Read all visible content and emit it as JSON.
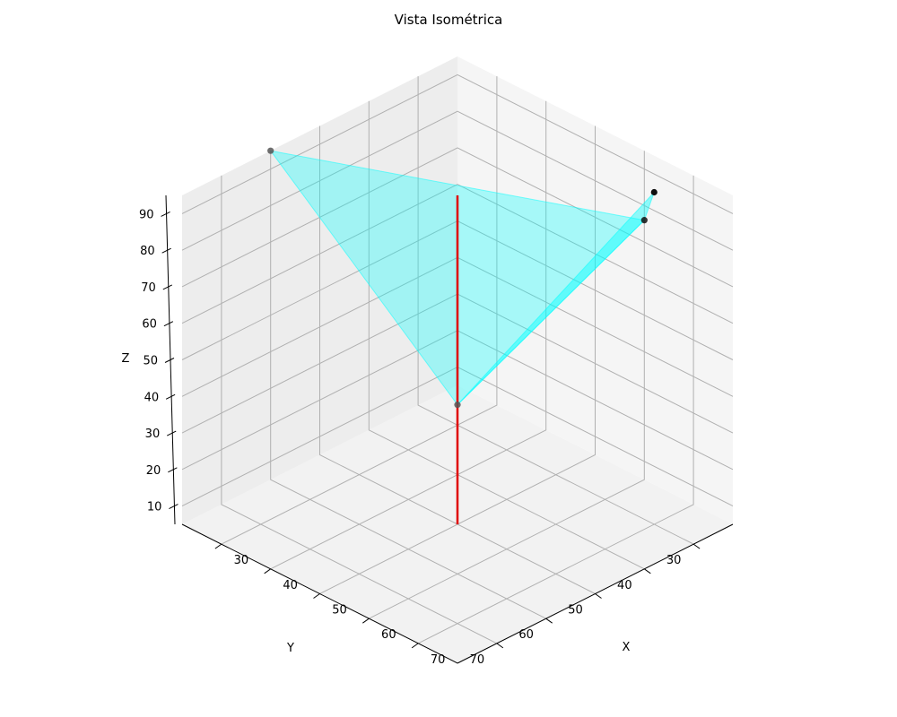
{
  "chart_data": {
    "type": "3d-scatter-surface",
    "title": "Vista Isométrica",
    "xlabel": "X",
    "ylabel": "Y",
    "zlabel": "Z",
    "xlim": [
      22,
      78
    ],
    "ylim": [
      22,
      78
    ],
    "zlim": [
      5,
      95
    ],
    "x_ticks": [
      30,
      40,
      50,
      60,
      70
    ],
    "y_ticks": [
      30,
      40,
      50,
      60,
      70
    ],
    "z_ticks": [
      10,
      20,
      30,
      40,
      50,
      60,
      70,
      80,
      90
    ],
    "grid": true,
    "points": [
      {
        "x": 22,
        "y": 60,
        "z": 95
      },
      {
        "x": 60,
        "y": 22,
        "z": 76
      },
      {
        "x": 62,
        "y": 22,
        "z": 85
      },
      {
        "x": 62,
        "y": 62,
        "z": 54
      }
    ],
    "surface": {
      "color": "#00ffff",
      "triangles": [
        [
          0,
          1,
          3
        ],
        [
          1,
          2,
          3
        ]
      ]
    },
    "vertical_line": {
      "color": "#e00000",
      "x": 50,
      "y": 50,
      "z_range": [
        5,
        95
      ]
    }
  }
}
